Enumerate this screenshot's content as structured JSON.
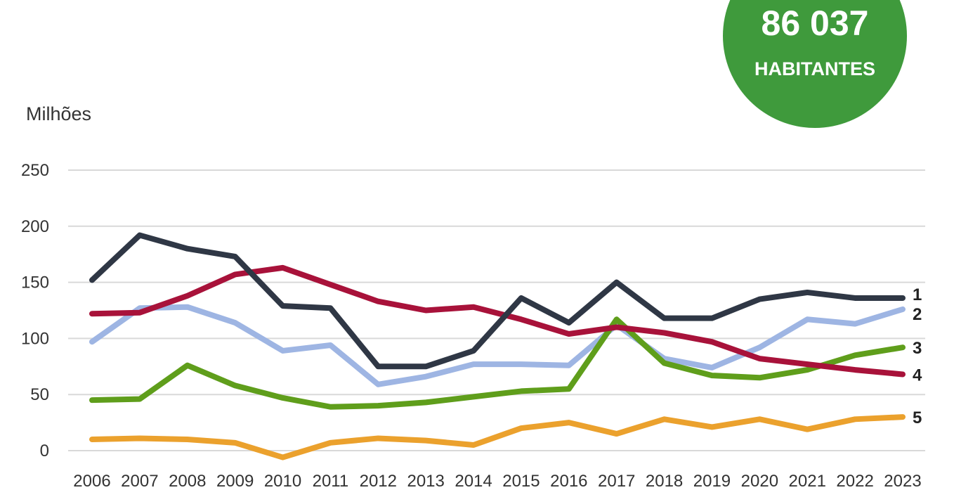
{
  "badge": {
    "value": "86 037",
    "label": "HABITANTES",
    "color": "#3f9a3c"
  },
  "chart_data": {
    "type": "line",
    "ylabel": "Milhões",
    "ylim": [
      0,
      250
    ],
    "yticks": [
      0,
      50,
      100,
      150,
      200,
      250
    ],
    "grid": true,
    "x": [
      2006,
      2007,
      2008,
      2009,
      2010,
      2011,
      2012,
      2013,
      2014,
      2015,
      2016,
      2017,
      2018,
      2019,
      2020,
      2021,
      2022,
      2023
    ],
    "series": [
      {
        "name": "2",
        "color": "#9eb5e3",
        "values": [
          97,
          127,
          128,
          114,
          89,
          94,
          59,
          66,
          77,
          77,
          76,
          112,
          82,
          74,
          92,
          117,
          113,
          126
        ]
      },
      {
        "name": "3",
        "color": "#5f9e1b",
        "values": [
          45,
          46,
          76,
          58,
          47,
          39,
          40,
          43,
          48,
          53,
          55,
          117,
          78,
          67,
          65,
          72,
          85,
          92
        ]
      },
      {
        "name": "5",
        "color": "#eba12d",
        "values": [
          10,
          11,
          10,
          7,
          -6,
          7,
          11,
          9,
          5,
          20,
          25,
          15,
          28,
          21,
          28,
          19,
          28,
          30
        ]
      },
      {
        "name": "4",
        "color": "#a8123a",
        "values": [
          122,
          123,
          138,
          157,
          163,
          148,
          133,
          125,
          128,
          117,
          104,
          110,
          105,
          97,
          82,
          77,
          72,
          68
        ]
      },
      {
        "name": "1",
        "color": "#2f3745",
        "values": [
          152,
          192,
          180,
          173,
          129,
          127,
          75,
          75,
          89,
          136,
          114,
          150,
          118,
          118,
          135,
          141,
          136,
          136
        ]
      }
    ]
  }
}
